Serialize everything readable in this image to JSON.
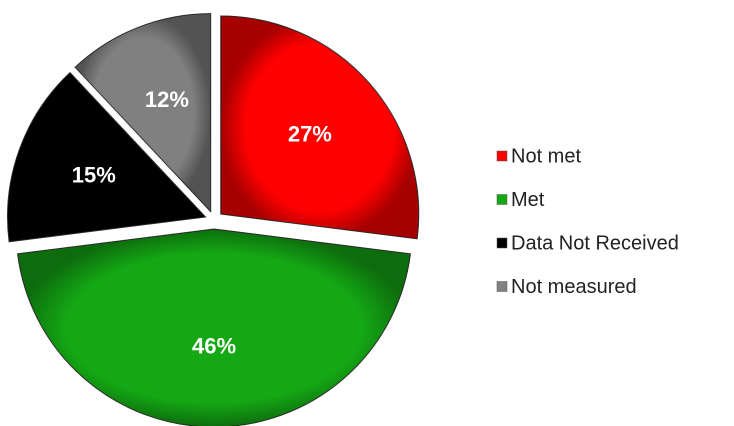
{
  "chart_data": {
    "type": "pie",
    "categories": [
      "Not met",
      "Met",
      "Data Not Received",
      "Not measured"
    ],
    "values": [
      27,
      46,
      15,
      12
    ],
    "value_labels": [
      "27%",
      "46%",
      "15%",
      "12%"
    ],
    "colors": [
      "#ff0000",
      "#14a814",
      "#000000",
      "#808080"
    ],
    "legend": "right"
  }
}
